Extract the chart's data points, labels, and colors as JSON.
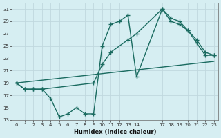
{
  "xlabel": "Humidex (Indice chaleur)",
  "bg_color": "#d6eef2",
  "grid_color": "#c0d8de",
  "line_color": "#1a6b60",
  "xlim": [
    -0.5,
    23.5
  ],
  "ylim": [
    13,
    32
  ],
  "yticks": [
    13,
    15,
    17,
    19,
    21,
    23,
    25,
    27,
    29,
    31
  ],
  "xticks": [
    0,
    1,
    2,
    3,
    4,
    5,
    6,
    7,
    8,
    9,
    10,
    11,
    12,
    13,
    14,
    17,
    18,
    19,
    20,
    21,
    22,
    23
  ],
  "xtick_labels": [
    "0",
    "1",
    "2",
    "3",
    "4",
    "5",
    "6",
    "7",
    "8",
    "9",
    "10",
    "11",
    "12",
    "13",
    "14",
    "17",
    "18",
    "19",
    "20",
    "21",
    "22",
    "23"
  ],
  "line1_x": [
    0,
    1,
    2,
    3,
    4,
    5,
    6,
    7,
    8,
    9,
    10,
    11,
    12,
    13,
    14,
    17,
    18,
    19,
    20,
    21,
    22,
    23
  ],
  "line1_y": [
    19,
    18,
    18,
    18,
    16.5,
    13.5,
    14,
    15,
    14,
    14,
    25,
    28.5,
    29,
    30,
    20,
    31,
    29.5,
    29,
    27.5,
    25.5,
    23.5,
    23.5
  ],
  "line2_x": [
    0,
    1,
    2,
    3,
    9,
    10,
    11,
    13,
    14,
    17,
    18,
    19,
    20,
    21,
    22,
    23
  ],
  "line2_y": [
    19,
    18,
    18,
    18,
    19,
    22,
    24,
    26,
    27,
    31,
    29,
    28.5,
    27.5,
    26,
    24,
    23.5
  ],
  "line3_x": [
    0,
    23
  ],
  "line3_y": [
    19,
    22.5
  ],
  "marker_size": 2.5,
  "linewidth": 1.0
}
